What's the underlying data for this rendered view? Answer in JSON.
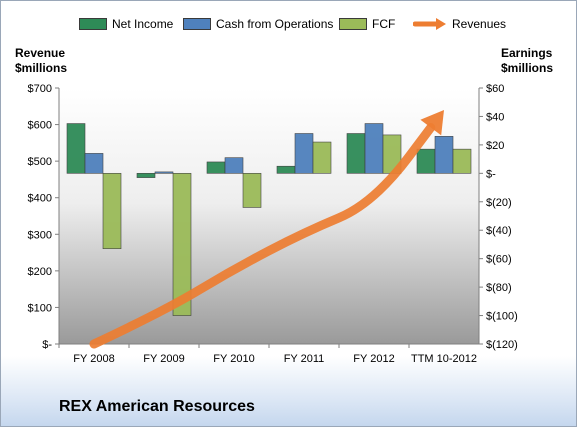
{
  "chart_data": {
    "type": "bar",
    "categories": [
      "FY 2008",
      "FY 2009",
      "FY 2010",
      "FY 2011",
      "FY 2012",
      "TTM 10-2012"
    ],
    "series": [
      {
        "name": "Net Income",
        "axis": "right",
        "color": "#2e8b57",
        "values": [
          35,
          -3,
          8,
          5,
          28,
          17
        ]
      },
      {
        "name": "Cash from Operations",
        "axis": "right",
        "color": "#4f81bd",
        "values": [
          14,
          1,
          11,
          28,
          35,
          26
        ]
      },
      {
        "name": "FCF",
        "axis": "right",
        "color": "#9bbb59",
        "values": [
          -53,
          -100,
          -24,
          22,
          27,
          17
        ]
      },
      {
        "name": "Revenues",
        "axis": "left",
        "type": "line",
        "color": "#ed7d31",
        "values": [
          0,
          90,
          205,
          305,
          385,
          640
        ]
      }
    ],
    "left_axis": {
      "title_line1": "Revenue",
      "title_line2": "$millions",
      "ylim": [
        0,
        700
      ],
      "ticks": [
        0,
        100,
        200,
        300,
        400,
        500,
        600,
        700
      ],
      "tick_labels": [
        "$-",
        "$100",
        "$200",
        "$300",
        "$400",
        "$500",
        "$600",
        "$700"
      ]
    },
    "right_axis": {
      "title_line1": "Earnings",
      "title_line2": "$millions",
      "ylim": [
        -120,
        60
      ],
      "ticks": [
        -120,
        -100,
        -80,
        -60,
        -40,
        -20,
        0,
        20,
        40,
        60
      ],
      "tick_labels": [
        "$(120)",
        "$(100)",
        "$(80)",
        "$(60)",
        "$(40)",
        "$(20)",
        "$-",
        "$20",
        "$40",
        "$60"
      ]
    },
    "legend_position": "top",
    "grid": false,
    "title": "REX American Resources"
  }
}
